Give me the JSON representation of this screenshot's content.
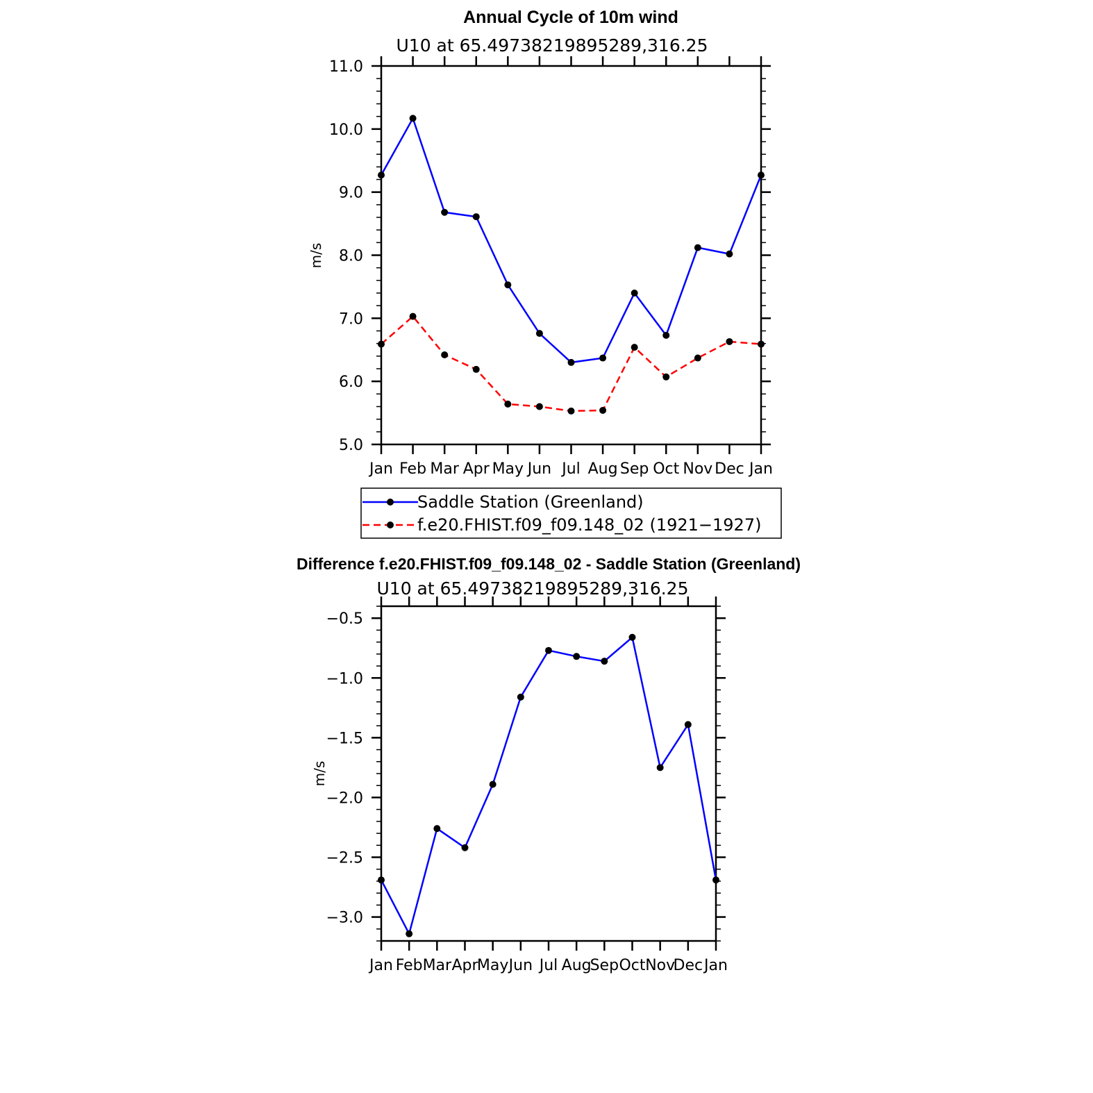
{
  "chart_data": [
    {
      "type": "line",
      "title": "Annual Cycle of 10m wind",
      "subtitle": "U10 at 65.49738219895289,316.25",
      "xlabel": "",
      "ylabel": "m/s",
      "categories": [
        "Jan",
        "Feb",
        "Mar",
        "Apr",
        "May",
        "Jun",
        "Jul",
        "Aug",
        "Sep",
        "Oct",
        "Nov",
        "Dec",
        "Jan"
      ],
      "ylim": [
        5.0,
        11.0
      ],
      "yticks": [
        "5.0",
        "6.0",
        "7.0",
        "8.0",
        "9.0",
        "10.0",
        "11.0"
      ],
      "legend_position": "bottom",
      "series": [
        {
          "name": "Saddle Station (Greenland)",
          "color": "#0000ff",
          "style": "solid",
          "values": [
            9.27,
            10.17,
            8.68,
            8.61,
            7.53,
            6.76,
            6.3,
            6.37,
            7.4,
            6.73,
            8.12,
            8.02,
            9.27
          ]
        },
        {
          "name": "f.e20.FHIST.f09_f09.148_02 (1921−1927)",
          "color": "#ff0000",
          "style": "dashed",
          "values": [
            6.59,
            7.03,
            6.42,
            6.19,
            5.64,
            5.6,
            5.53,
            5.54,
            6.54,
            6.07,
            6.37,
            6.63,
            6.59
          ]
        }
      ]
    },
    {
      "type": "line",
      "title": "Difference f.e20.FHIST.f09_f09.148_02 - Saddle Station (Greenland)",
      "subtitle": "U10 at 65.49738219895289,316.25",
      "xlabel": "",
      "ylabel": "m/s",
      "categories": [
        "Jan",
        "Feb",
        "Mar",
        "Apr",
        "May",
        "Jun",
        "Jul",
        "Aug",
        "Sep",
        "Oct",
        "Nov",
        "Dec",
        "Jan"
      ],
      "ylim": [
        -3.2,
        -0.4
      ],
      "yticks": [
        "−3.0",
        "−2.5",
        "−2.0",
        "−1.5",
        "−1.0",
        "−0.5"
      ],
      "ytick_values": [
        -3.0,
        -2.5,
        -2.0,
        -1.5,
        -1.0,
        -0.5
      ],
      "series": [
        {
          "name": "Difference",
          "color": "#0000ff",
          "style": "solid",
          "values": [
            -2.69,
            -3.14,
            -2.26,
            -2.42,
            -1.89,
            -1.16,
            -0.77,
            -0.82,
            -0.86,
            -0.66,
            -1.75,
            -1.39,
            -2.69
          ]
        }
      ]
    }
  ]
}
